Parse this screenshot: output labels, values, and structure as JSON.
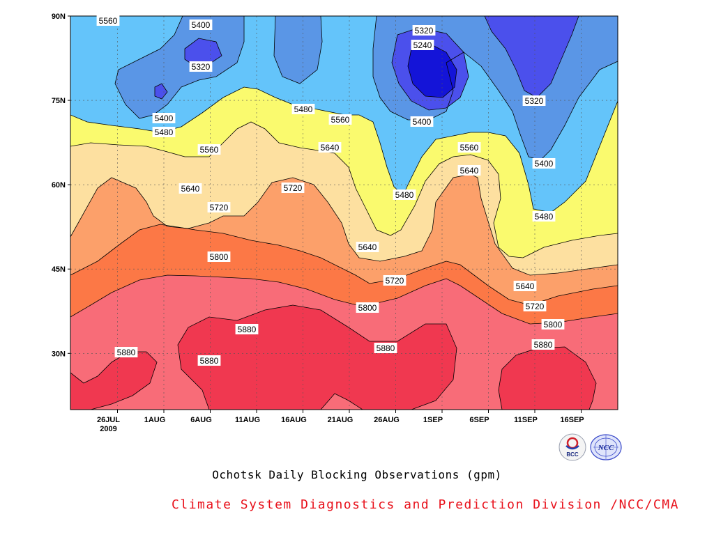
{
  "chart_data": {
    "type": "contour",
    "title": "Ochotsk Daily Blocking Observations (gpm)",
    "credit": "Climate System Diagnostics and Prediction Division /NCC/CMA",
    "x_ticks": [
      "26JUL",
      "1AUG",
      "6AUG",
      "11AUG",
      "16AUG",
      "21AUG",
      "26AUG",
      "1SEP",
      "6SEP",
      "11SEP",
      "16SEP"
    ],
    "x_year": "2009",
    "y_ticks": [
      "90N",
      "75N",
      "60N",
      "45N",
      "30N"
    ],
    "ylim": [
      20,
      90
    ],
    "grid": true,
    "contour_levels": [
      5240,
      5320,
      5400,
      5480,
      5560,
      5640,
      5720,
      5800,
      5880
    ],
    "colors": {
      "lt5240": "#1414d8",
      "5240_5320": "#4b50ec",
      "5320_5400": "#5a96e6",
      "5400_5480": "#64c4fa",
      "5480_5560": "#fafa6e",
      "5560_5640": "#fde0a0",
      "5640_5720": "#fca06a",
      "5720_5800": "#fc7846",
      "5800_5880": "#f86c78",
      "gt5880": "#f03850"
    },
    "contour_labels": [
      "5560",
      "5400",
      "5320",
      "5320",
      "5240",
      "5400",
      "5480",
      "5480",
      "5560",
      "5400",
      "5320",
      "5560",
      "5640",
      "5560",
      "5400",
      "5640",
      "5720",
      "5640",
      "5480",
      "5720",
      "5480",
      "5640",
      "5800",
      "5720",
      "5640",
      "5800",
      "5720",
      "5800",
      "5880",
      "5880",
      "5880",
      "5880",
      "5880"
    ]
  },
  "logos": {
    "left": "BCC",
    "right": "NCC"
  }
}
